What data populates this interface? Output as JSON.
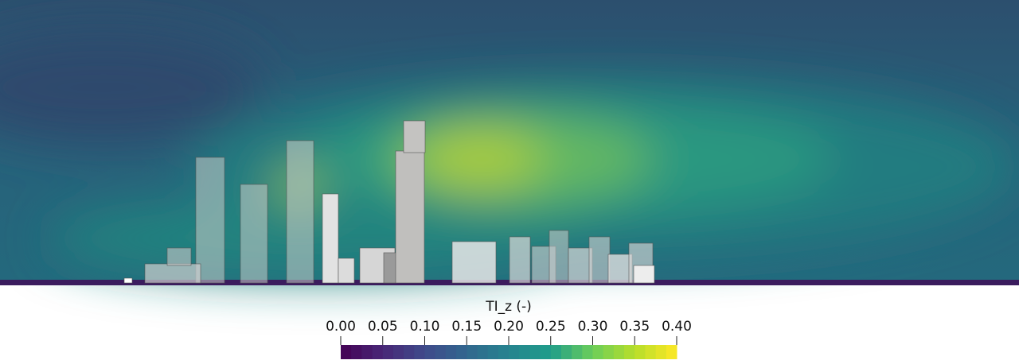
{
  "colorbar": {
    "title": "TI_z (-)",
    "lim": [
      0,
      0.4
    ],
    "ticks": [
      {
        "value": 0,
        "label": "0.00"
      },
      {
        "value": 0.05,
        "label": "0.05"
      },
      {
        "value": 0.1,
        "label": "0.10"
      },
      {
        "value": 0.15,
        "label": "0.15"
      },
      {
        "value": 0.2,
        "label": "0.20"
      },
      {
        "value": 0.25,
        "label": "0.25"
      },
      {
        "value": 0.3,
        "label": "0.30"
      },
      {
        "value": 0.35,
        "label": "0.35"
      },
      {
        "value": 0.4,
        "label": "0.40"
      }
    ]
  }
}
